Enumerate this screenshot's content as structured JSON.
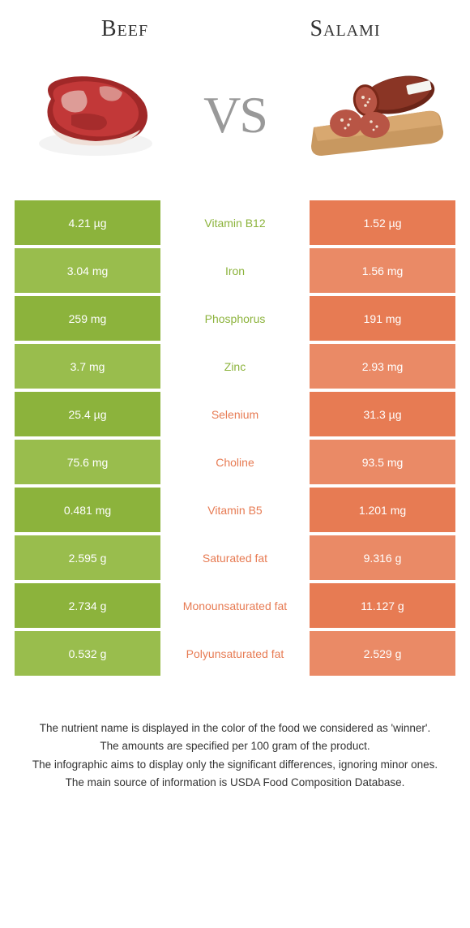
{
  "colors": {
    "green": "#8cb33c",
    "green_alt": "#99bd4d",
    "orange": "#e77b53",
    "orange_alt": "#ea8a66",
    "label_green": "#8cb33c",
    "label_orange": "#e77b53",
    "text_dark": "#333333",
    "vs_gray": "#999999"
  },
  "header": {
    "left_title": "Beef",
    "right_title": "Salami",
    "vs_text": "VS"
  },
  "rows": [
    {
      "left": "4.21 µg",
      "label": "Vitamin B12",
      "right": "1.52 µg",
      "winner": "left"
    },
    {
      "left": "3.04 mg",
      "label": "Iron",
      "right": "1.56 mg",
      "winner": "left"
    },
    {
      "left": "259 mg",
      "label": "Phosphorus",
      "right": "191 mg",
      "winner": "left"
    },
    {
      "left": "3.7 mg",
      "label": "Zinc",
      "right": "2.93 mg",
      "winner": "left"
    },
    {
      "left": "25.4 µg",
      "label": "Selenium",
      "right": "31.3 µg",
      "winner": "right"
    },
    {
      "left": "75.6 mg",
      "label": "Choline",
      "right": "93.5 mg",
      "winner": "right"
    },
    {
      "left": "0.481 mg",
      "label": "Vitamin B5",
      "right": "1.201 mg",
      "winner": "right"
    },
    {
      "left": "2.595 g",
      "label": "Saturated fat",
      "right": "9.316 g",
      "winner": "right"
    },
    {
      "left": "2.734 g",
      "label": "Monounsaturated fat",
      "right": "11.127 g",
      "winner": "right"
    },
    {
      "left": "0.532 g",
      "label": "Polyunsaturated fat",
      "right": "2.529 g",
      "winner": "right"
    }
  ],
  "footer": {
    "line1": "The nutrient name is displayed in the color of the food we considered as 'winner'.",
    "line2": "The amounts are specified per 100 gram of the product.",
    "line3": "The infographic aims to display only the significant differences, ignoring minor ones.",
    "line4": "The main source of information is USDA Food Composition Database."
  }
}
